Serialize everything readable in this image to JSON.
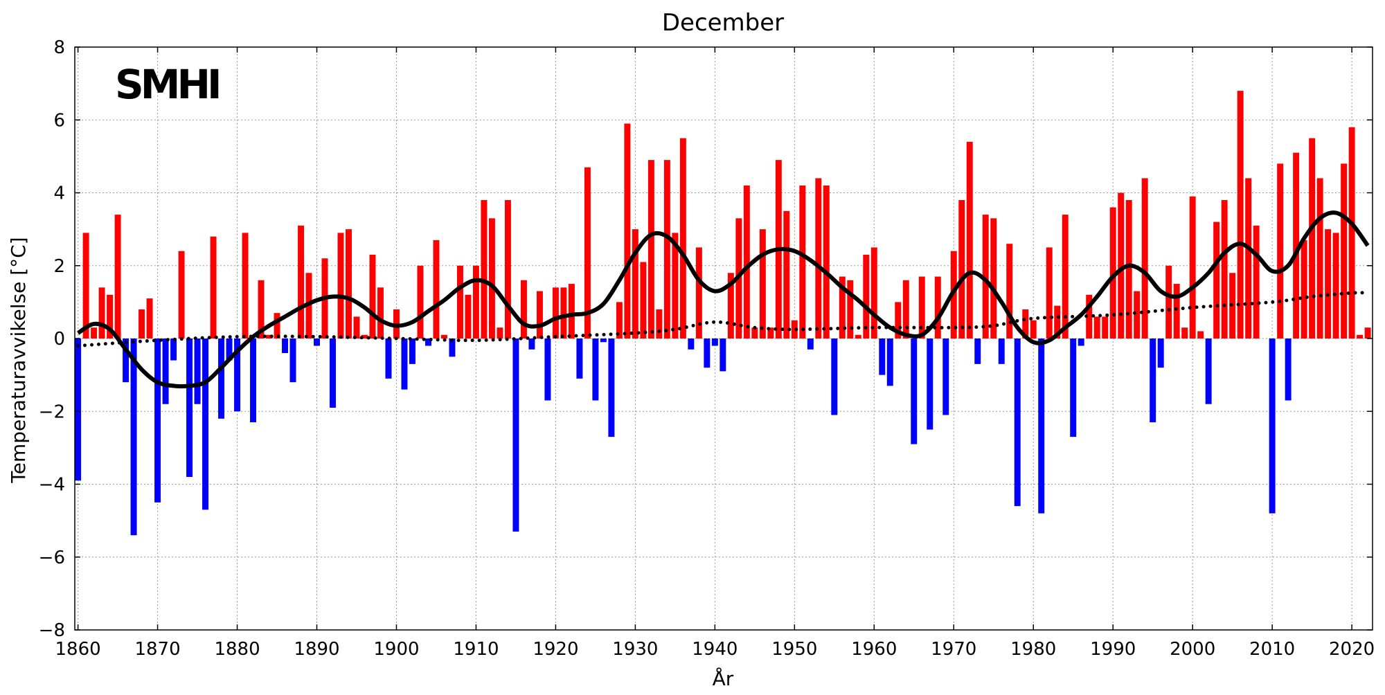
{
  "chart_data": {
    "type": "bar",
    "title": "December",
    "xlabel": "År",
    "ylabel": "Temperaturavvikelse [°C]",
    "logo_text": "SMHI",
    "xlim": [
      1859.6,
      2022.6
    ],
    "ylim": [
      -8,
      8
    ],
    "x_ticks": [
      1860,
      1870,
      1880,
      1890,
      1900,
      1910,
      1920,
      1930,
      1940,
      1950,
      1960,
      1970,
      1980,
      1990,
      2000,
      2010,
      2020
    ],
    "y_ticks": [
      -8,
      -6,
      -4,
      -2,
      0,
      2,
      4,
      6,
      8
    ],
    "y_tick_labels": [
      "−8",
      "−6",
      "−4",
      "−2",
      "0",
      "2",
      "4",
      "6",
      "8"
    ],
    "grid": true,
    "colors": {
      "positive": "#ff0000",
      "negative": "#0000ff",
      "lines": "#000000"
    },
    "years_start": 1860,
    "values": [
      -3.9,
      2.9,
      0.3,
      1.4,
      1.2,
      3.4,
      -1.2,
      -5.4,
      0.8,
      1.1,
      -4.5,
      -1.8,
      -0.6,
      2.4,
      -3.8,
      -1.8,
      -4.7,
      2.8,
      -2.2,
      -0.6,
      -2.0,
      2.9,
      -2.3,
      1.6,
      0.1,
      0.7,
      -0.4,
      -1.2,
      3.1,
      1.8,
      -0.2,
      2.2,
      -1.9,
      2.9,
      3.0,
      0.6,
      0.1,
      2.3,
      1.4,
      -1.1,
      0.8,
      -1.4,
      -0.7,
      2.0,
      -0.2,
      2.7,
      0.1,
      -0.5,
      2.0,
      1.2,
      2.0,
      3.8,
      3.3,
      0.3,
      3.8,
      -5.3,
      1.6,
      -0.3,
      1.3,
      -1.7,
      1.4,
      1.4,
      1.5,
      -1.1,
      4.7,
      -1.7,
      -0.1,
      -2.7,
      1.0,
      5.9,
      3.0,
      2.1,
      4.9,
      0.8,
      4.9,
      2.9,
      5.5,
      -0.3,
      2.5,
      -0.8,
      -0.2,
      -0.9,
      1.8,
      3.3,
      4.2,
      0.3,
      3.0,
      0.3,
      4.9,
      3.5,
      0.5,
      4.2,
      -0.3,
      4.4,
      4.2,
      -2.1,
      1.7,
      1.6,
      0.1,
      2.3,
      2.5,
      -1.0,
      -1.3,
      1.0,
      1.6,
      -2.9,
      1.7,
      -2.5,
      1.7,
      -2.1,
      2.4,
      3.8,
      5.4,
      -0.7,
      3.4,
      3.3,
      -0.7,
      2.6,
      -4.6,
      0.8,
      0.5,
      -4.8,
      2.5,
      0.9,
      3.4,
      -2.7,
      -0.2,
      1.2,
      0.6,
      0.6,
      3.6,
      4.0,
      3.8,
      1.3,
      4.4,
      -2.3,
      -0.8,
      2.0,
      1.5,
      0.3,
      3.9,
      0.2,
      -1.8,
      3.2,
      3.8,
      1.8,
      6.8,
      4.4,
      3.1,
      0.0,
      -4.8,
      4.8,
      -1.7,
      5.1,
      2.7,
      5.5,
      4.4,
      3.0,
      2.9,
      4.8,
      5.8,
      0.1,
      0.3
    ],
    "series": [
      {
        "type": "smooth-line",
        "style": "solid",
        "x": [
          1860,
          1862,
          1864,
          1866,
          1868,
          1870,
          1872,
          1874,
          1876,
          1878,
          1880,
          1882,
          1884,
          1886,
          1888,
          1890,
          1892,
          1894,
          1896,
          1898,
          1900,
          1902,
          1904,
          1906,
          1908,
          1910,
          1912,
          1914,
          1916,
          1918,
          1920,
          1922,
          1924,
          1926,
          1928,
          1930,
          1932,
          1934,
          1936,
          1938,
          1940,
          1942,
          1944,
          1946,
          1948,
          1950,
          1952,
          1954,
          1956,
          1958,
          1960,
          1962,
          1964,
          1966,
          1968,
          1970,
          1972,
          1974,
          1976,
          1978,
          1980,
          1982,
          1984,
          1986,
          1988,
          1990,
          1992,
          1994,
          1996,
          1998,
          2000,
          2002,
          2004,
          2006,
          2008,
          2010,
          2012,
          2014,
          2016,
          2018,
          2020,
          2022
        ],
        "y": [
          0.15,
          0.4,
          0.25,
          -0.3,
          -0.85,
          -1.2,
          -1.3,
          -1.3,
          -1.2,
          -0.8,
          -0.35,
          0.05,
          0.35,
          0.6,
          0.85,
          1.05,
          1.15,
          1.1,
          0.85,
          0.5,
          0.35,
          0.45,
          0.75,
          1.05,
          1.4,
          1.6,
          1.45,
          0.9,
          0.4,
          0.35,
          0.55,
          0.65,
          0.7,
          0.95,
          1.6,
          2.35,
          2.85,
          2.8,
          2.3,
          1.6,
          1.3,
          1.5,
          1.95,
          2.3,
          2.45,
          2.4,
          2.15,
          1.8,
          1.4,
          1.05,
          0.65,
          0.3,
          0.1,
          0.1,
          0.55,
          1.3,
          1.8,
          1.6,
          1.0,
          0.3,
          -0.1,
          -0.05,
          0.3,
          0.65,
          1.15,
          1.7,
          2.0,
          1.8,
          1.3,
          1.15,
          1.4,
          1.8,
          2.35,
          2.6,
          2.3,
          1.85,
          2.0,
          2.75,
          3.3,
          3.45,
          3.15,
          2.55
        ]
      },
      {
        "type": "trend",
        "style": "dotted",
        "x": [
          1860,
          1870,
          1880,
          1890,
          1900,
          1910,
          1920,
          1930,
          1935,
          1940,
          1945,
          1950,
          1960,
          1970,
          1975,
          1980,
          1990,
          2000,
          2010,
          2015,
          2020,
          2022
        ],
        "y": [
          -0.2,
          -0.05,
          0.05,
          0.05,
          0.0,
          -0.05,
          0.05,
          0.15,
          0.25,
          0.45,
          0.3,
          0.25,
          0.3,
          0.3,
          0.35,
          0.55,
          0.65,
          0.85,
          1.0,
          1.15,
          1.25,
          1.25
        ]
      }
    ]
  }
}
